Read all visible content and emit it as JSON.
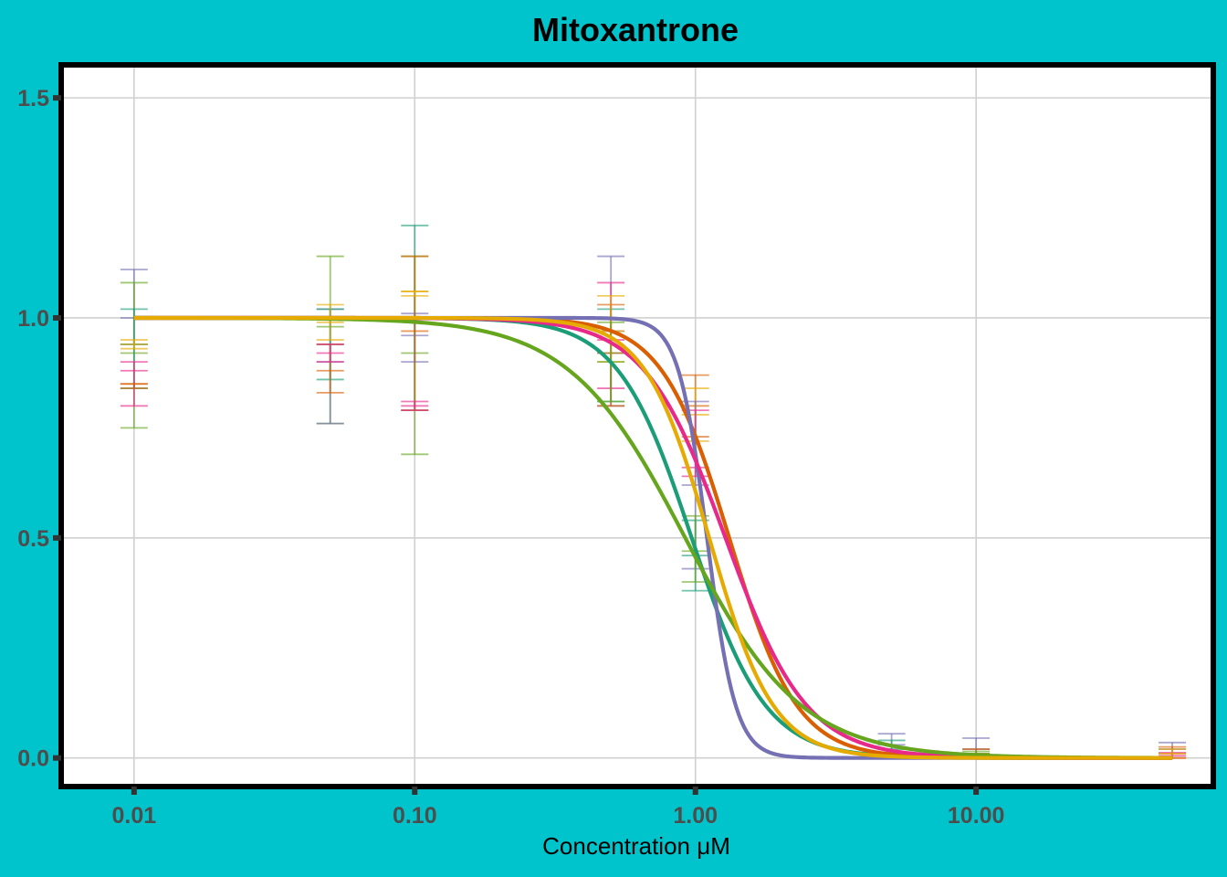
{
  "chart_data": {
    "type": "line",
    "title": "Mitoxantrone",
    "xlabel": "Concentration μM",
    "ylabel": "",
    "x_scale": "log10",
    "xlim": [
      0.0055,
      70
    ],
    "ylim": [
      -0.065,
      1.575
    ],
    "x_ticks": [
      0.01,
      0.1,
      1,
      10
    ],
    "x_tick_labels": [
      "0.01",
      "0.10",
      "1.00",
      "10.00"
    ],
    "y_ticks": [
      0,
      0.5,
      1,
      1.5
    ],
    "y_tick_labels": [
      "0.0",
      "0.5",
      "1.0",
      "1.5"
    ],
    "grid": true,
    "legend": "none",
    "curve_x_range": [
      0.01,
      50
    ],
    "series": [
      {
        "color": "#1B9E77",
        "ec50": 0.97,
        "hill": 3.3
      },
      {
        "color": "#D95F02",
        "ec50": 1.32,
        "hill": 3.6
      },
      {
        "color": "#7570B3",
        "ec50": 1.1,
        "hill": 8.5
      },
      {
        "color": "#E7298A",
        "ec50": 1.28,
        "hill": 3.0
      },
      {
        "color": "#66A61E",
        "ec50": 0.92,
        "hill": 2.1
      },
      {
        "color": "#E6AB02",
        "ec50": 1.12,
        "hill": 3.8
      }
    ],
    "error_bars": [
      {
        "x": 0.01,
        "color": "#7570B3",
        "y": 1.0,
        "low": 0.94,
        "high": 1.11
      },
      {
        "x": 0.01,
        "color": "#66A61E",
        "y": 0.92,
        "low": 0.75,
        "high": 1.08
      },
      {
        "x": 0.01,
        "color": "#1B9E77",
        "y": 0.94,
        "low": 0.84,
        "high": 1.02
      },
      {
        "x": 0.01,
        "color": "#E7298A",
        "y": 0.88,
        "low": 0.8,
        "high": 0.9
      },
      {
        "x": 0.01,
        "color": "#E6AB02",
        "y": 0.94,
        "low": 0.93,
        "high": 0.95
      },
      {
        "x": 0.01,
        "color": "#D95F02",
        "y": 0.85,
        "low": 0.84,
        "high": 0.85
      },
      {
        "x": 0.05,
        "color": "#66A61E",
        "y": 0.98,
        "low": 0.76,
        "high": 1.14
      },
      {
        "x": 0.05,
        "color": "#7570B3",
        "y": 0.9,
        "low": 0.76,
        "high": 1.02
      },
      {
        "x": 0.05,
        "color": "#1B9E77",
        "y": 0.94,
        "low": 0.86,
        "high": 1.02
      },
      {
        "x": 0.05,
        "color": "#D95F02",
        "y": 0.88,
        "low": 0.83,
        "high": 0.94
      },
      {
        "x": 0.05,
        "color": "#E7298A",
        "y": 0.92,
        "low": 0.9,
        "high": 0.94
      },
      {
        "x": 0.05,
        "color": "#E6AB02",
        "y": 0.99,
        "low": 0.95,
        "high": 1.03
      },
      {
        "x": 0.1,
        "color": "#1B9E77",
        "y": 1.0,
        "low": 0.79,
        "high": 1.21
      },
      {
        "x": 0.1,
        "color": "#66A61E",
        "y": 0.92,
        "low": 0.69,
        "high": 1.14
      },
      {
        "x": 0.1,
        "color": "#7570B3",
        "y": 0.96,
        "low": 0.9,
        "high": 1.01
      },
      {
        "x": 0.1,
        "color": "#D95F02",
        "y": 0.97,
        "low": 0.79,
        "high": 1.14
      },
      {
        "x": 0.1,
        "color": "#E6AB02",
        "y": 1.06,
        "low": 1.05,
        "high": 1.06
      },
      {
        "x": 0.1,
        "color": "#E7298A",
        "y": 0.8,
        "low": 0.79,
        "high": 0.81
      },
      {
        "x": 0.5,
        "color": "#7570B3",
        "y": 0.97,
        "low": 0.8,
        "high": 1.14
      },
      {
        "x": 0.5,
        "color": "#E7298A",
        "y": 0.95,
        "low": 0.84,
        "high": 1.08
      },
      {
        "x": 0.5,
        "color": "#1B9E77",
        "y": 0.92,
        "low": 0.81,
        "high": 1.02
      },
      {
        "x": 0.5,
        "color": "#D95F02",
        "y": 0.92,
        "low": 0.8,
        "high": 1.03
      },
      {
        "x": 0.5,
        "color": "#E6AB02",
        "y": 0.97,
        "low": 0.9,
        "high": 1.05
      },
      {
        "x": 0.5,
        "color": "#66A61E",
        "y": 0.9,
        "low": 0.81,
        "high": 0.99
      },
      {
        "x": 1.0,
        "color": "#D95F02",
        "y": 0.8,
        "low": 0.73,
        "high": 0.87
      },
      {
        "x": 1.0,
        "color": "#E6AB02",
        "y": 0.78,
        "low": 0.72,
        "high": 0.84
      },
      {
        "x": 1.0,
        "color": "#7570B3",
        "y": 0.62,
        "low": 0.43,
        "high": 0.81
      },
      {
        "x": 1.0,
        "color": "#E7298A",
        "y": 0.66,
        "low": 0.64,
        "high": 0.79
      },
      {
        "x": 1.0,
        "color": "#1B9E77",
        "y": 0.46,
        "low": 0.38,
        "high": 0.54
      },
      {
        "x": 1.0,
        "color": "#66A61E",
        "y": 0.47,
        "low": 0.4,
        "high": 0.55
      },
      {
        "x": 5.0,
        "color": "#7570B3",
        "y": 0.03,
        "low": 0.0,
        "high": 0.055
      },
      {
        "x": 5.0,
        "color": "#1B9E77",
        "y": 0.02,
        "low": 0.0,
        "high": 0.04
      },
      {
        "x": 10.0,
        "color": "#7570B3",
        "y": 0.02,
        "low": 0.0,
        "high": 0.045
      },
      {
        "x": 10.0,
        "color": "#D95F02",
        "y": 0.01,
        "low": 0.0,
        "high": 0.02
      },
      {
        "x": 10.0,
        "color": "#66A61E",
        "y": 0.01,
        "low": 0.0,
        "high": 0.015
      },
      {
        "x": 50.0,
        "color": "#7570B3",
        "y": 0.02,
        "low": 0.0,
        "high": 0.035
      },
      {
        "x": 50.0,
        "color": "#D95F02",
        "y": 0.01,
        "low": 0.0,
        "high": 0.025
      },
      {
        "x": 50.0,
        "color": "#E7298A",
        "y": 0.005,
        "low": 0.0,
        "high": 0.012
      },
      {
        "x": 50.0,
        "color": "#E6AB02",
        "y": 0.01,
        "low": 0.0,
        "high": 0.02
      }
    ]
  }
}
